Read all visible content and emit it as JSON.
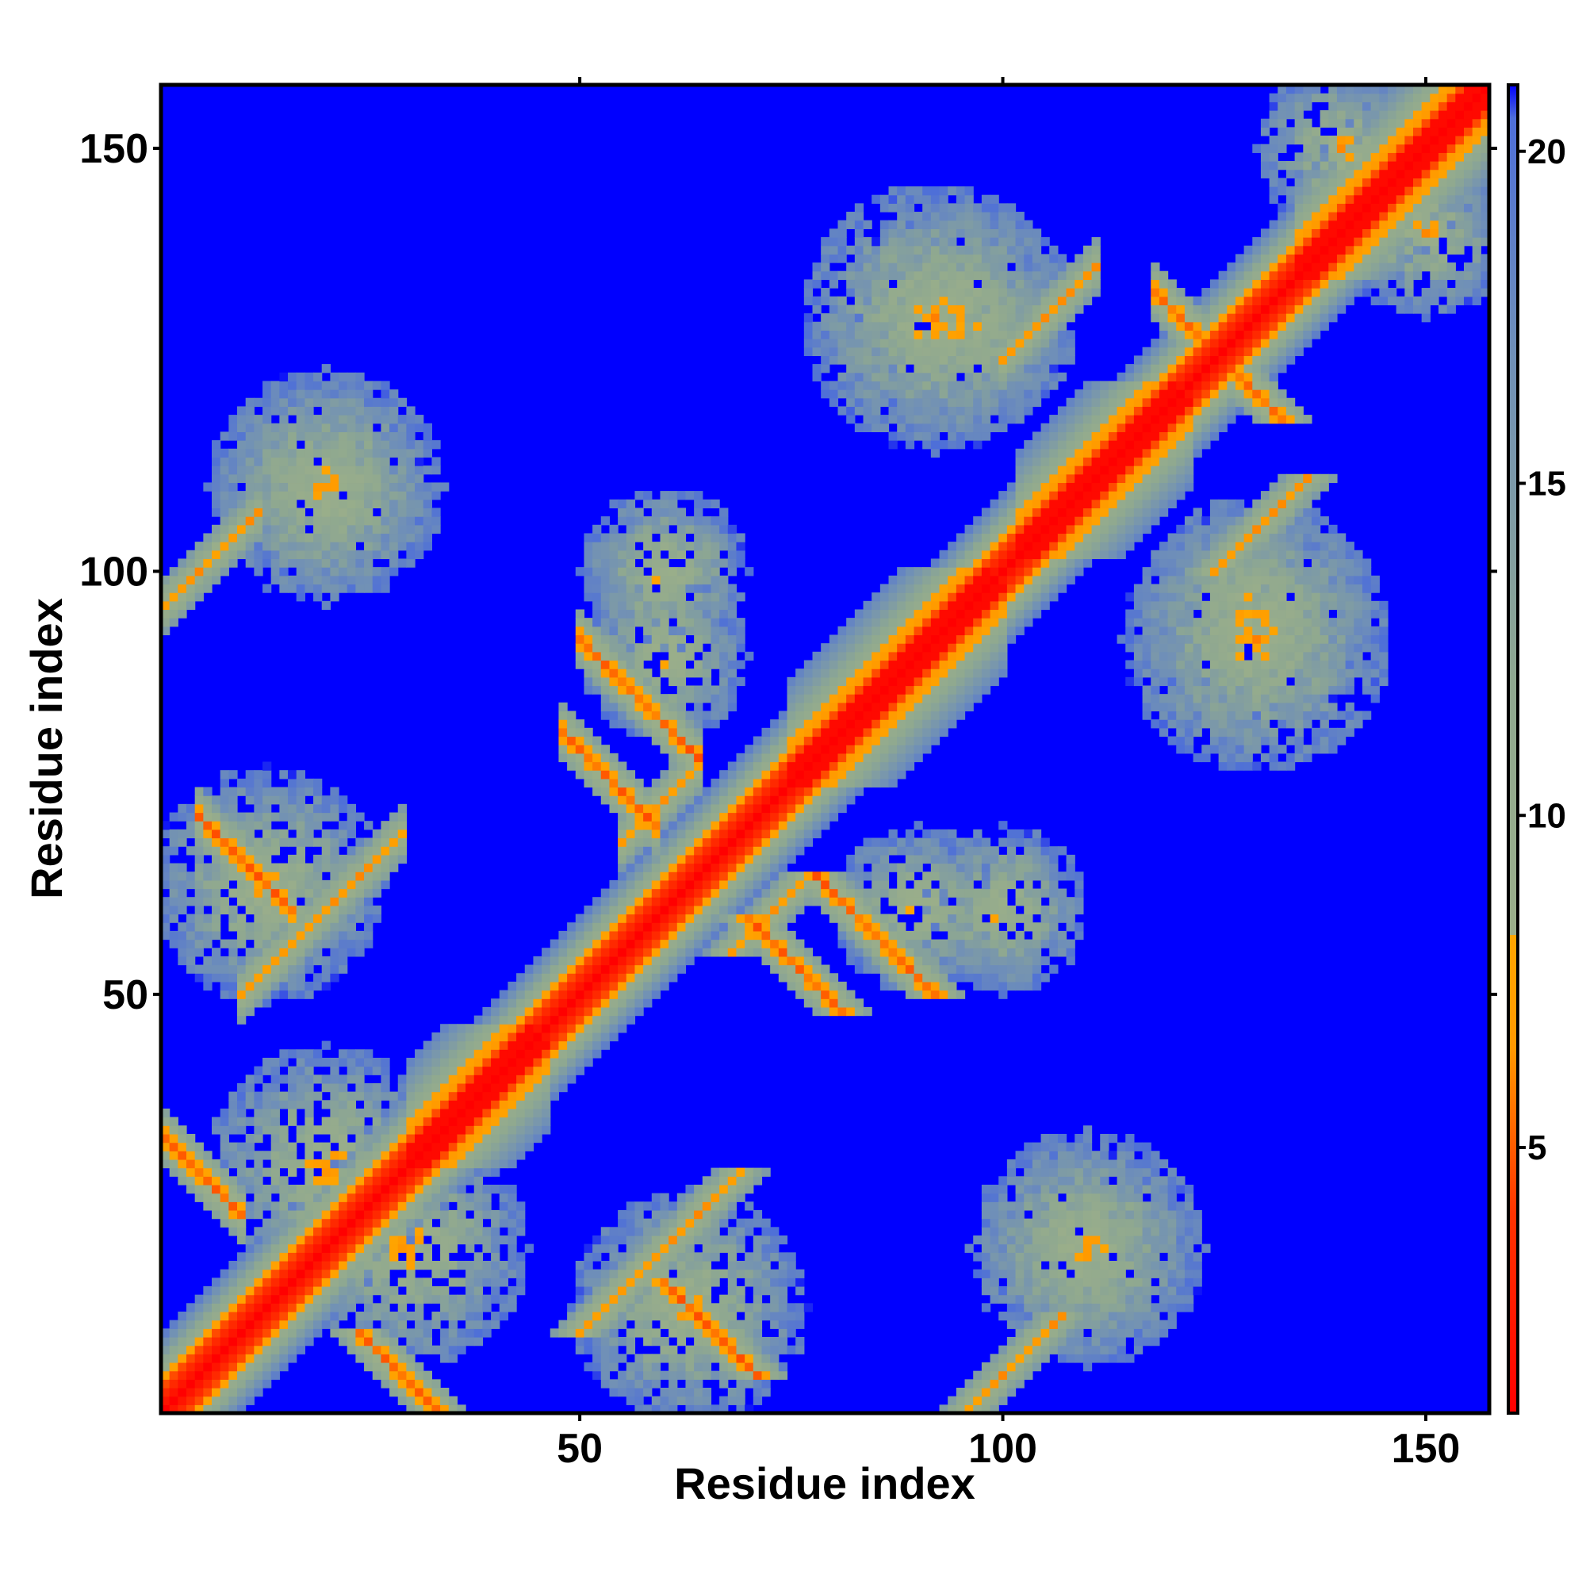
{
  "chart_data": {
    "type": "heatmap",
    "title": "",
    "xlabel": "Residue index",
    "ylabel": "Residue index",
    "xlim": [
      1,
      157
    ],
    "ylim": [
      1,
      157
    ],
    "x_ticks": [
      "50",
      "100",
      "150"
    ],
    "y_ticks": [
      "50",
      "100",
      "150"
    ],
    "colorbar": {
      "range": [
        1,
        21
      ],
      "ticks": [
        "5",
        "10",
        "15",
        "20"
      ],
      "stops": [
        {
          "value": 1,
          "color": "#ff0000"
        },
        {
          "value": 4,
          "color": "#ff3300"
        },
        {
          "value": 6.5,
          "color": "#ff9900"
        },
        {
          "value": 8.2,
          "color": "#ffa500"
        },
        {
          "value": 8.2,
          "color": "#9aae8a"
        },
        {
          "value": 12,
          "color": "#8fa890"
        },
        {
          "value": 17,
          "color": "#6f8fb8"
        },
        {
          "value": 20.5,
          "color": "#4e6fd8"
        },
        {
          "value": 21,
          "color": "#0000ff"
        }
      ]
    },
    "background_color": "#0000ff",
    "value_description": "pairwise residue distance matrix; diagonal near 1, far pairs saturated at maximum",
    "features": {
      "diagonal_width": 3,
      "helices": [
        [
          30,
          44
        ],
        [
          75,
          98
        ],
        [
          102,
          120
        ],
        [
          135,
          156
        ]
      ],
      "antiparallel_contacts": [
        {
          "start_a": 1,
          "start_b": 24,
          "length": 10
        },
        {
          "start_a": 5,
          "start_b": 60,
          "length": 12
        },
        {
          "start_a": 48,
          "start_b": 70,
          "length": 12
        },
        {
          "start_a": 50,
          "start_b": 78,
          "length": 15
        },
        {
          "start_a": 118,
          "start_b": 128,
          "length": 6
        }
      ],
      "parallel_contacts": [
        {
          "start_a": 1,
          "start_b": 96,
          "length": 12
        },
        {
          "start_a": 10,
          "start_b": 50,
          "length": 20
        },
        {
          "start_a": 55,
          "start_b": 68,
          "length": 10
        },
        {
          "start_a": 100,
          "start_b": 125,
          "length": 12
        }
      ],
      "contact_clusters": [
        {
          "x": 63,
          "y": 13,
          "r": 14
        },
        {
          "x": 110,
          "y": 20,
          "r": 12
        },
        {
          "x": 100,
          "y": 60,
          "r": 10
        },
        {
          "x": 130,
          "y": 95,
          "r": 14
        },
        {
          "x": 92,
          "y": 130,
          "r": 16
        },
        {
          "x": 20,
          "y": 110,
          "r": 14
        },
        {
          "x": 140,
          "y": 150,
          "r": 10
        },
        {
          "x": 20,
          "y": 30,
          "r": 14
        },
        {
          "x": 60,
          "y": 90,
          "r": 10
        }
      ]
    }
  }
}
